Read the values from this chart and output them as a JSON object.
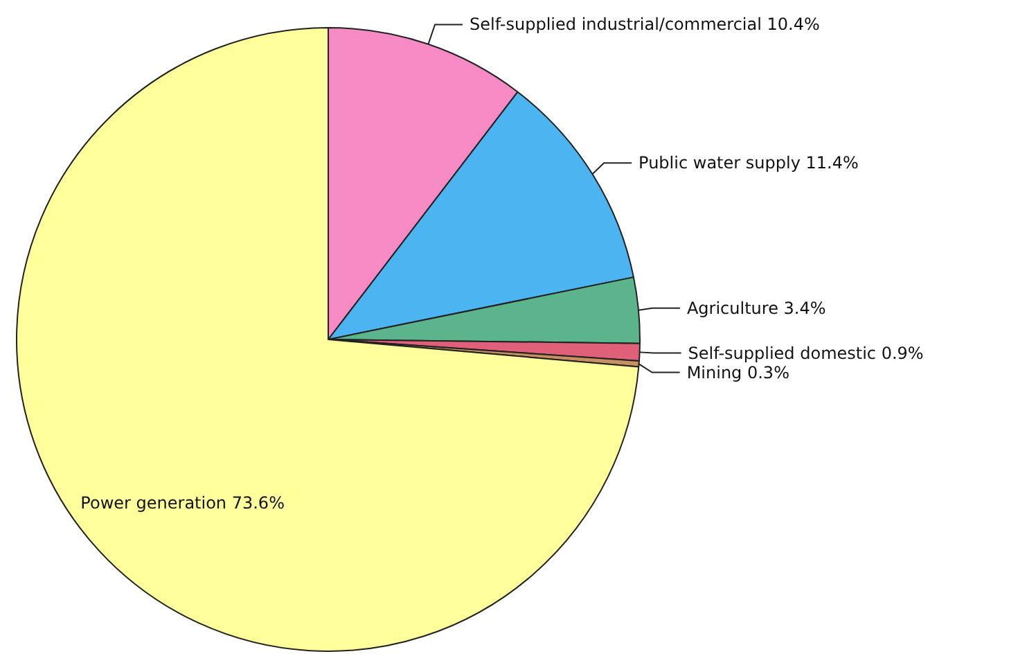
{
  "chart_data": {
    "type": "pie",
    "categories": [
      "Self-supplied industrial/commercial",
      "Public water supply",
      "Agriculture",
      "Self-supplied domestic",
      "Mining",
      "Power generation"
    ],
    "values": [
      10.4,
      11.4,
      3.4,
      0.9,
      0.3,
      73.6
    ],
    "value_labels": [
      "10.4%",
      "11.4%",
      "3.4%",
      "0.9%",
      "0.3%",
      "73.6%"
    ],
    "colors": [
      "#f58ac4",
      "#4cb4f0",
      "#5cb48c",
      "#e0607a",
      "#c89060",
      "#ffff9c"
    ],
    "legend": false
  }
}
